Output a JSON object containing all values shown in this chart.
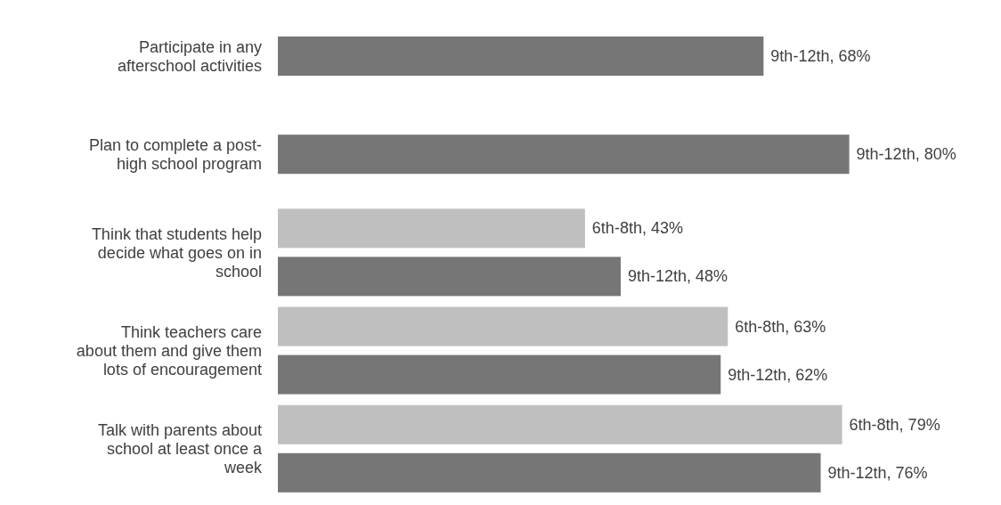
{
  "chart_data": {
    "type": "bar",
    "orientation": "horizontal",
    "categories": [
      "Participate in any afterschool activities",
      "Plan to complete a post-high school program",
      "Think that students help decide what goes on in school",
      "Think teachers care about them and give them lots of encouragement",
      "Talk with parents about school at least once a week"
    ],
    "series": [
      {
        "color": "#bfbfbf",
        "values": [
          null,
          null,
          43,
          63,
          79
        ],
        "value_labels": [
          null,
          null,
          "6th-8th, 43%",
          "6th-8th, 63%",
          "6th-8th, 79%"
        ]
      },
      {
        "color": "#767676",
        "values": [
          68,
          80,
          48,
          62,
          76
        ],
        "value_labels": [
          "9th-12th, 68%",
          "9th-12th, 80%",
          "9th-12th, 48%",
          "9th-12th, 62%",
          "9th-12th, 76%"
        ]
      }
    ]
  }
}
